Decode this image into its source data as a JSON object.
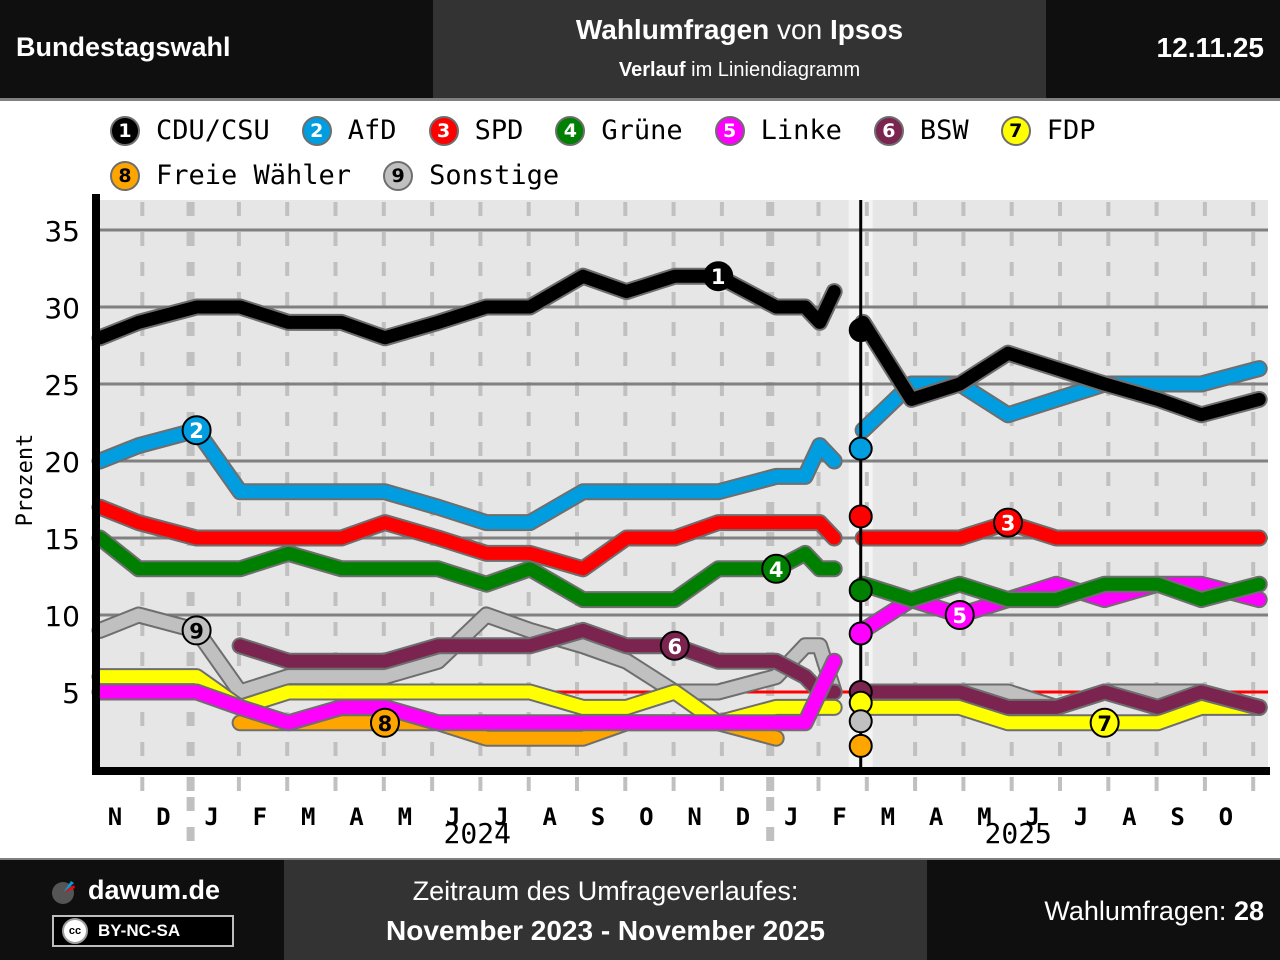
{
  "header": {
    "left_title": "Bundestagswahl",
    "title_bold": "Wahlumfragen",
    "title_mid": " von ",
    "title_inst": "Ipsos",
    "subtitle_bold": "Verlauf",
    "subtitle_rest": " im Liniendiagramm",
    "date": "12.11.25"
  },
  "legend": [
    {
      "num": "1",
      "name": "CDU/CSU",
      "color": "#000000",
      "text_color": "#ffffff"
    },
    {
      "num": "2",
      "name": "AfD",
      "color": "#009ee0",
      "text_color": "#ffffff"
    },
    {
      "num": "3",
      "name": "SPD",
      "color": "#ff0000",
      "text_color": "#ffffff"
    },
    {
      "num": "4",
      "name": "Grüne",
      "color": "#008000",
      "text_color": "#ffffff"
    },
    {
      "num": "5",
      "name": "Linke",
      "color": "#ff00ff",
      "text_color": "#ffffff"
    },
    {
      "num": "6",
      "name": "BSW",
      "color": "#7b2450",
      "text_color": "#ffffff"
    },
    {
      "num": "7",
      "name": "FDP",
      "color": "#ffff00",
      "text_color": "#000000"
    },
    {
      "num": "8",
      "name": "Freie Wähler",
      "color": "#ffa500",
      "text_color": "#000000"
    },
    {
      "num": "9",
      "name": "Sonstige",
      "color": "#c0c0c0",
      "text_color": "#000000"
    }
  ],
  "chart_data": {
    "type": "line",
    "title": "Wahlumfragen von Ipsos – Verlauf im Liniendiagramm",
    "ylabel": "Prozent",
    "xlabel": "",
    "ylim": [
      0,
      37
    ],
    "yticks": [
      5,
      10,
      15,
      20,
      25,
      30,
      35
    ],
    "xlim_months": [
      0,
      24.7
    ],
    "x_unit": "months since 1 Nov 2023",
    "month_labels": [
      "N",
      "D",
      "J",
      "F",
      "M",
      "A",
      "M",
      "J",
      "J",
      "A",
      "S",
      "O",
      "N",
      "D",
      "J",
      "F",
      "M",
      "A",
      "M",
      "J",
      "J",
      "A",
      "S",
      "O"
    ],
    "year_labels": [
      {
        "label": "2024",
        "month": 7.5
      },
      {
        "label": "2025",
        "month": 18.7
      }
    ],
    "year_separators": [
      2,
      14
    ],
    "grid": true,
    "election_month": 15.75,
    "threshold": 5,
    "legend_position": "top",
    "pre_x": [
      0,
      0.8,
      2,
      2.9,
      3.9,
      5,
      5.9,
      7,
      8,
      8.9,
      10,
      10.9,
      11.9,
      12.8,
      14,
      14.6,
      14.9,
      15.2
    ],
    "post_x": [
      15.8,
      16.8,
      17.8,
      18.8,
      19.8,
      20.8,
      21.9,
      22.8,
      24.0
    ],
    "series": [
      {
        "name": "CDU/CSU",
        "num": "1",
        "color": "#000000",
        "pre": [
          28,
          29,
          30,
          30,
          29,
          29,
          28,
          29,
          30,
          30,
          32,
          31,
          32,
          32,
          30,
          30,
          29,
          31
        ],
        "election": 28.5,
        "post": [
          29,
          24,
          25,
          27,
          26,
          25,
          24,
          23,
          24
        ],
        "label_at": 12.8,
        "label_phase": "pre"
      },
      {
        "name": "AfD",
        "num": "2",
        "color": "#009ee0",
        "pre": [
          20,
          21,
          22,
          18,
          18,
          18,
          18,
          17,
          16,
          16,
          18,
          18,
          18,
          18,
          19,
          19,
          21,
          20
        ],
        "election": 20.8,
        "post": [
          22,
          25,
          25,
          23,
          24,
          25,
          25,
          25,
          26
        ],
        "label_at": 2,
        "label_phase": "pre"
      },
      {
        "name": "SPD",
        "num": "3",
        "color": "#ff0000",
        "pre": [
          17,
          16,
          15,
          15,
          15,
          15,
          16,
          15,
          14,
          14,
          13,
          15,
          15,
          16,
          16,
          16,
          16,
          15
        ],
        "election": 16.4,
        "post": [
          15,
          15,
          15,
          16,
          15,
          15,
          15,
          15,
          15
        ],
        "label_at": 18.8,
        "label_phase": "post"
      },
      {
        "name": "Grüne",
        "num": "4",
        "color": "#008000",
        "pre": [
          15,
          13,
          13,
          13,
          14,
          13,
          13,
          13,
          12,
          13,
          11,
          11,
          11,
          13,
          13,
          14,
          13,
          13
        ],
        "election": 11.6,
        "post": [
          12,
          11,
          12,
          11,
          11,
          12,
          12,
          11,
          12
        ],
        "label_at": 14,
        "label_phase": "pre"
      },
      {
        "name": "Linke",
        "num": "5",
        "color": "#ff00ff",
        "pre": [
          5,
          5,
          5,
          4,
          3,
          4,
          4,
          3,
          3,
          3,
          3,
          3,
          3,
          3,
          3,
          3,
          5,
          7
        ],
        "election": 8.8,
        "post": [
          9,
          11,
          10,
          11,
          12,
          11,
          12,
          12,
          11
        ],
        "label_at": 17.8,
        "label_phase": "post"
      },
      {
        "name": "BSW",
        "num": "6",
        "color": "#7b2450",
        "pre": [
          null,
          null,
          null,
          8,
          7,
          7,
          7,
          8,
          8,
          8,
          9,
          8,
          8,
          7,
          7,
          6,
          5,
          5
        ],
        "election": 5.0,
        "post": [
          5,
          5,
          5,
          4,
          4,
          5,
          4,
          5,
          4
        ],
        "label_at": 11.9,
        "label_phase": "pre"
      },
      {
        "name": "FDP",
        "num": "7",
        "color": "#ffff00",
        "pre": [
          6,
          6,
          6,
          4,
          5,
          5,
          5,
          5,
          5,
          5,
          4,
          4,
          5,
          3,
          4,
          4,
          4,
          4
        ],
        "election": 4.3,
        "post": [
          4,
          4,
          4,
          3,
          3,
          3,
          3,
          4,
          4
        ],
        "label_at": 20.8,
        "label_phase": "post"
      },
      {
        "name": "Freie Wähler",
        "num": "8",
        "color": "#ffa500",
        "pre": [
          null,
          null,
          null,
          3,
          3,
          3,
          3,
          3,
          2,
          2,
          2,
          3,
          3,
          3,
          2,
          null,
          null,
          null
        ],
        "election": 1.5,
        "post": [
          null,
          null,
          null,
          null,
          null,
          null,
          null,
          null,
          null
        ],
        "label_at": 5.9,
        "label_phase": "pre"
      },
      {
        "name": "Sonstige",
        "num": "9",
        "color": "#c0c0c0",
        "pre": [
          9,
          10,
          9,
          5,
          6,
          6,
          6,
          7,
          10,
          9,
          8,
          7,
          5,
          5,
          6,
          8,
          8,
          5
        ],
        "election": 3.1,
        "post": [
          5,
          5,
          5,
          5,
          4,
          5,
          5,
          5,
          4
        ],
        "label_at": 2,
        "label_phase": "pre"
      }
    ]
  },
  "footer": {
    "site": "dawum.de",
    "license": "BY-NC-SA",
    "cc": "cc",
    "period_label": "Zeitraum des Umfrageverlaufes:",
    "period_value": "November 2023 - November 2025",
    "count_label": "Wahlumfragen: ",
    "count_value": "28"
  }
}
